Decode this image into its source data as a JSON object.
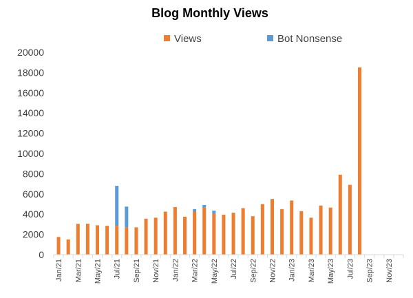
{
  "chart_data": {
    "type": "bar",
    "stacked": true,
    "title": "Blog Monthly Views",
    "xlabel": "",
    "ylabel": "",
    "ylim": [
      0,
      20000
    ],
    "yticks": [
      0,
      2000,
      4000,
      6000,
      8000,
      10000,
      12000,
      14000,
      16000,
      18000,
      20000
    ],
    "grid": false,
    "legend_position": "top",
    "categories": [
      "Jan/21",
      "Feb/21",
      "Mar/21",
      "Apr/21",
      "May/21",
      "Jun/21",
      "Jul/21",
      "Aug/21",
      "Sep/21",
      "Oct/21",
      "Nov/21",
      "Dec/21",
      "Jan/22",
      "Feb/22",
      "Mar/22",
      "Apr/22",
      "May/22",
      "Jun/22",
      "Jul/22",
      "Aug/22",
      "Sep/22",
      "Oct/22",
      "Nov/22",
      "Dec/22",
      "Jan/23",
      "Feb/23",
      "Mar/23",
      "Apr/23",
      "May/23",
      "Jun/23",
      "Jul/23",
      "Aug/23",
      "Sep/23",
      "Oct/23",
      "Nov/23",
      "Dec/23"
    ],
    "x_tick_labels": [
      "Jan/21",
      "Mar/21",
      "May/21",
      "Jul/21",
      "Sep/21",
      "Nov/21",
      "Jan/22",
      "Mar/22",
      "May/22",
      "Jul/22",
      "Sep/22",
      "Nov/22",
      "Jan/23",
      "Mar/23",
      "May/23",
      "Jul/23",
      "Sep/23",
      "Nov/23"
    ],
    "series": [
      {
        "name": "Views",
        "color": "#ED7D31",
        "values": [
          1750,
          1500,
          3050,
          3050,
          2900,
          2850,
          2850,
          2700,
          2700,
          3550,
          3650,
          4250,
          4700,
          3750,
          4250,
          4650,
          4050,
          3950,
          4150,
          4600,
          3800,
          5000,
          5500,
          4500,
          5350,
          4300,
          3650,
          4850,
          4650,
          7900,
          6900,
          18500,
          0,
          0,
          0,
          0
        ]
      },
      {
        "name": "Bot Nonsense",
        "color": "#5B9BD5",
        "values": [
          0,
          0,
          0,
          0,
          0,
          0,
          3950,
          2050,
          0,
          0,
          0,
          0,
          0,
          0,
          250,
          250,
          300,
          0,
          0,
          0,
          0,
          0,
          0,
          0,
          0,
          0,
          0,
          0,
          0,
          0,
          0,
          0,
          0,
          0,
          0,
          0
        ]
      }
    ]
  }
}
